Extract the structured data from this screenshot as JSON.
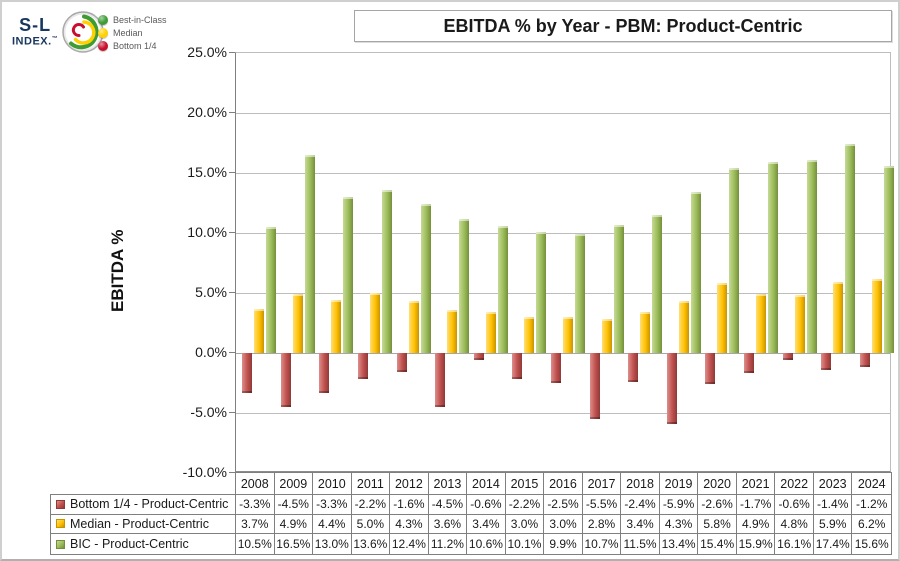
{
  "logo": {
    "line1": "S-L",
    "line2": "INDEX.",
    "trademark": "™"
  },
  "legend": {
    "items": [
      {
        "label": "Best-in-Class",
        "color": "#3f9c35"
      },
      {
        "label": "Median",
        "color": "#ffd100"
      },
      {
        "label": "Bottom 1/4",
        "color": "#c8102e"
      }
    ]
  },
  "title": "EBITDA % by Year - PBM: Product-Centric",
  "y_axis": {
    "title": "EBITDA %",
    "ticks": [
      {
        "label": "25.0%",
        "value": 25
      },
      {
        "label": "20.0%",
        "value": 20
      },
      {
        "label": "15.0%",
        "value": 15
      },
      {
        "label": "10.0%",
        "value": 10
      },
      {
        "label": "5.0%",
        "value": 5
      },
      {
        "label": "0.0%",
        "value": 0
      },
      {
        "label": "-5.0%",
        "value": -5
      },
      {
        "label": "-10.0%",
        "value": -10
      }
    ]
  },
  "chart_data": {
    "type": "bar",
    "title": "EBITDA % by Year - PBM: Product-Centric",
    "xlabel": "",
    "ylabel": "EBITDA %",
    "ylim": [
      -10,
      25
    ],
    "ytick_step": 5,
    "grid": true,
    "legend_position": "top-left",
    "categories": [
      "2008",
      "2009",
      "2010",
      "2011",
      "2012",
      "2013",
      "2014",
      "2015",
      "2016",
      "2017",
      "2018",
      "2019",
      "2020",
      "2021",
      "2022",
      "2023",
      "2024"
    ],
    "series": [
      {
        "name": "Bottom 1/4 - Product-Centric",
        "legend_label": "Bottom 1/4",
        "color": "#c0504d",
        "color_highlight": "#dd8e8b",
        "color_shadow": "#8e3a38",
        "values": [
          -3.3,
          -4.5,
          -3.3,
          -2.2,
          -1.6,
          -4.5,
          -0.6,
          -2.2,
          -2.5,
          -5.5,
          -2.4,
          -5.9,
          -2.6,
          -1.7,
          -0.6,
          -1.4,
          -1.2
        ]
      },
      {
        "name": "Median - Product-Centric",
        "legend_label": "Median",
        "color": "#ffc000",
        "color_highlight": "#ffdf74",
        "color_shadow": "#c79400",
        "values": [
          3.7,
          4.9,
          4.4,
          5.0,
          4.3,
          3.6,
          3.4,
          3.0,
          3.0,
          2.8,
          3.4,
          4.3,
          5.8,
          4.9,
          4.8,
          5.9,
          6.2
        ]
      },
      {
        "name": "BIC - Product-Centric",
        "legend_label": "Best-in-Class",
        "color": "#9bbb59",
        "color_highlight": "#c5da96",
        "color_shadow": "#748f3b",
        "values": [
          10.5,
          16.5,
          13.0,
          13.6,
          12.4,
          11.2,
          10.6,
          10.1,
          9.9,
          10.7,
          11.5,
          13.4,
          15.4,
          15.9,
          16.1,
          17.4,
          15.6
        ]
      }
    ]
  },
  "table": {
    "rows": [
      {
        "label": "Bottom 1/4 - Product-Centric",
        "values": [
          "-3.3%",
          "-4.5%",
          "-3.3%",
          "-2.2%",
          "-1.6%",
          "-4.5%",
          "-0.6%",
          "-2.2%",
          "-2.5%",
          "-5.5%",
          "-2.4%",
          "-5.9%",
          "-2.6%",
          "-1.7%",
          "-0.6%",
          "-1.4%",
          "-1.2%"
        ]
      },
      {
        "label": "Median - Product-Centric",
        "values": [
          "3.7%",
          "4.9%",
          "4.4%",
          "5.0%",
          "4.3%",
          "3.6%",
          "3.4%",
          "3.0%",
          "3.0%",
          "2.8%",
          "3.4%",
          "4.3%",
          "5.8%",
          "4.9%",
          "4.8%",
          "5.9%",
          "6.2%"
        ]
      },
      {
        "label": "BIC - Product-Centric",
        "values": [
          "10.5%",
          "16.5%",
          "13.0%",
          "13.6%",
          "12.4%",
          "11.2%",
          "10.6%",
          "10.1%",
          "9.9%",
          "10.7%",
          "11.5%",
          "13.4%",
          "15.4%",
          "15.9%",
          "16.1%",
          "17.4%",
          "15.6%"
        ]
      }
    ]
  }
}
